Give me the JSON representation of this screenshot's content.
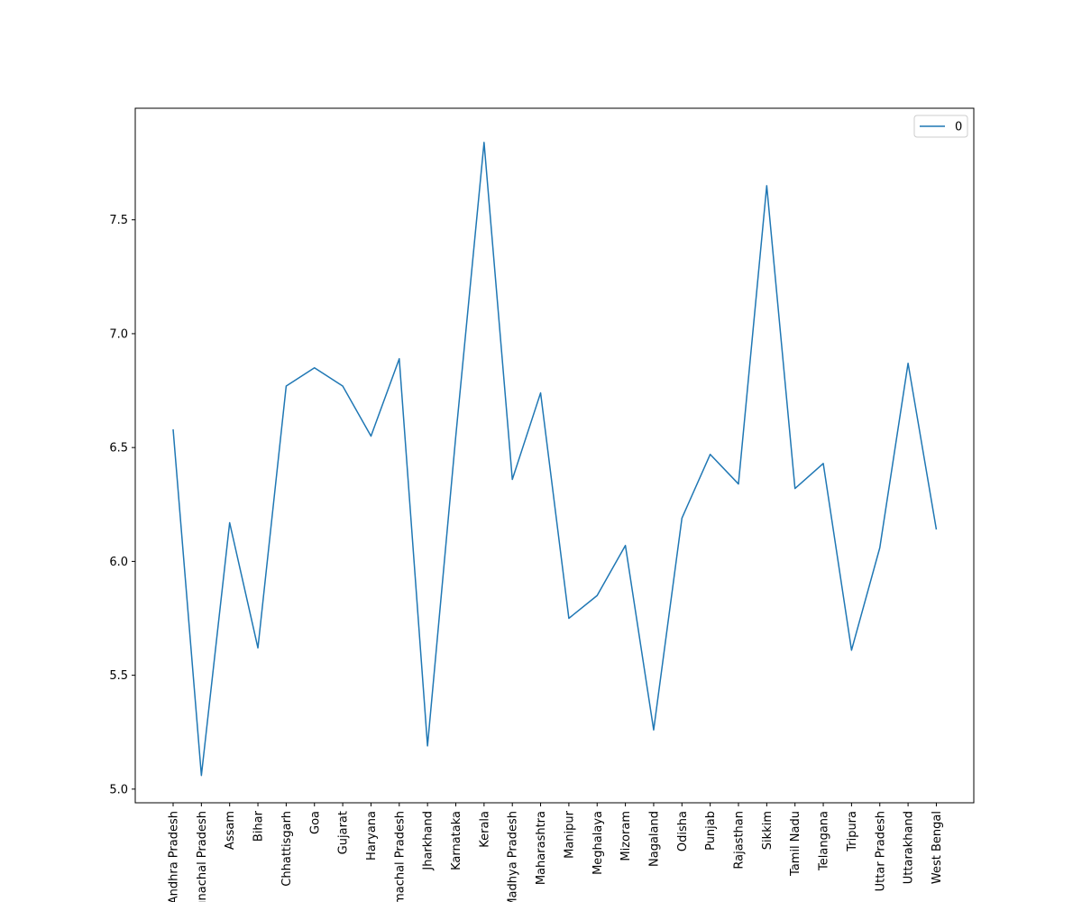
{
  "chart_data": {
    "type": "line",
    "title": "",
    "xlabel": "",
    "ylabel": "",
    "categories": [
      "Andhra Pradesh",
      "Arunachal Pradesh",
      "Assam",
      "Bihar",
      "Chhattisgarh",
      "Goa",
      "Gujarat",
      "Haryana",
      "Himachal Pradesh",
      "Jharkhand",
      "Karnataka",
      "Kerala",
      "Madhya Pradesh",
      "Maharashtra",
      "Manipur",
      "Meghalaya",
      "Mizoram",
      "Nagaland",
      "Odisha",
      "Punjab",
      "Rajasthan",
      "Sikkim",
      "Tamil Nadu",
      "Telangana",
      "Tripura",
      "Uttar Pradesh",
      "Uttarakhand",
      "West Bengal"
    ],
    "series": [
      {
        "name": "0",
        "color": "#1f77b4",
        "values": [
          6.58,
          5.06,
          6.17,
          5.62,
          6.77,
          6.85,
          6.77,
          6.55,
          6.89,
          5.19,
          6.55,
          7.84,
          6.36,
          6.74,
          5.75,
          5.85,
          6.07,
          5.26,
          6.19,
          6.47,
          6.34,
          7.65,
          6.32,
          6.43,
          5.61,
          6.06,
          6.87,
          6.14
        ]
      }
    ],
    "ylim": [
      4.94,
      7.99
    ],
    "yticks": [
      5.0,
      5.5,
      6.0,
      6.5,
      7.0,
      7.5
    ],
    "ytick_labels": [
      "5.0",
      "5.5",
      "6.0",
      "6.5",
      "7.0",
      "7.5"
    ],
    "grid": false,
    "legend": {
      "placement": "top-right",
      "entries": [
        "0"
      ]
    }
  }
}
